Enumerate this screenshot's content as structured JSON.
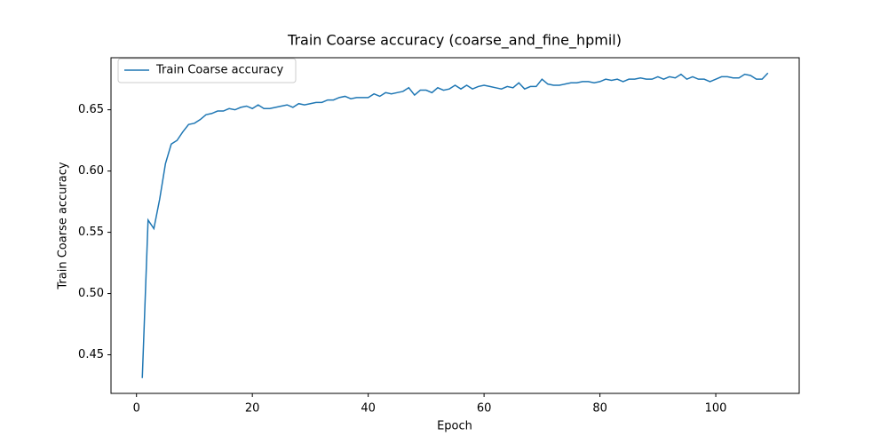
{
  "chart_data": {
    "type": "line",
    "title": "Train Coarse accuracy (coarse_and_fine_hpmil)",
    "xlabel": "Epoch",
    "ylabel": "Train Coarse accuracy",
    "x": [
      1,
      2,
      3,
      4,
      5,
      6,
      7,
      8,
      9,
      10,
      11,
      12,
      13,
      14,
      15,
      16,
      17,
      18,
      19,
      20,
      21,
      22,
      23,
      24,
      25,
      26,
      27,
      28,
      29,
      30,
      31,
      32,
      33,
      34,
      35,
      36,
      37,
      38,
      39,
      40,
      41,
      42,
      43,
      44,
      45,
      46,
      47,
      48,
      49,
      50,
      51,
      52,
      53,
      54,
      55,
      56,
      57,
      58,
      59,
      60,
      61,
      62,
      63,
      64,
      65,
      66,
      67,
      68,
      69,
      70,
      71,
      72,
      73,
      74,
      75,
      76,
      77,
      78,
      79,
      80,
      81,
      82,
      83,
      84,
      85,
      86,
      87,
      88,
      89,
      90,
      91,
      92,
      93,
      94,
      95,
      96,
      97,
      98,
      99,
      100,
      101,
      102,
      103,
      104,
      105,
      106,
      107,
      108,
      109
    ],
    "series": [
      {
        "name": "Train Coarse accuracy",
        "color": "#1f77b4",
        "values": [
          0.431,
          0.56,
          0.553,
          0.577,
          0.606,
          0.622,
          0.625,
          0.632,
          0.638,
          0.639,
          0.642,
          0.646,
          0.647,
          0.649,
          0.649,
          0.651,
          0.65,
          0.652,
          0.653,
          0.651,
          0.654,
          0.651,
          0.651,
          0.652,
          0.653,
          0.654,
          0.652,
          0.655,
          0.654,
          0.655,
          0.656,
          0.656,
          0.658,
          0.658,
          0.66,
          0.661,
          0.659,
          0.66,
          0.66,
          0.66,
          0.663,
          0.661,
          0.664,
          0.663,
          0.664,
          0.665,
          0.668,
          0.662,
          0.666,
          0.666,
          0.664,
          0.668,
          0.666,
          0.667,
          0.67,
          0.667,
          0.67,
          0.667,
          0.669,
          0.67,
          0.669,
          0.668,
          0.667,
          0.669,
          0.668,
          0.672,
          0.667,
          0.669,
          0.669,
          0.675,
          0.671,
          0.67,
          0.67,
          0.671,
          0.672,
          0.672,
          0.673,
          0.673,
          0.672,
          0.673,
          0.675,
          0.674,
          0.675,
          0.673,
          0.675,
          0.675,
          0.676,
          0.675,
          0.675,
          0.677,
          0.675,
          0.677,
          0.676,
          0.679,
          0.675,
          0.677,
          0.675,
          0.675,
          0.673,
          0.675,
          0.677,
          0.677,
          0.676,
          0.676,
          0.679,
          0.678,
          0.675,
          0.675,
          0.68
        ]
      }
    ],
    "xlim": [
      -4.4,
      114.4
    ],
    "ylim": [
      0.4185,
      0.6925
    ],
    "xticks": [
      0,
      20,
      40,
      60,
      80,
      100
    ],
    "yticks": [
      0.45,
      {
        "value": 0.5,
        "label": "0.50"
      },
      0.55,
      {
        "value": 0.6,
        "label": "0.60"
      },
      0.65
    ],
    "grid": false,
    "legend": "upper left"
  }
}
